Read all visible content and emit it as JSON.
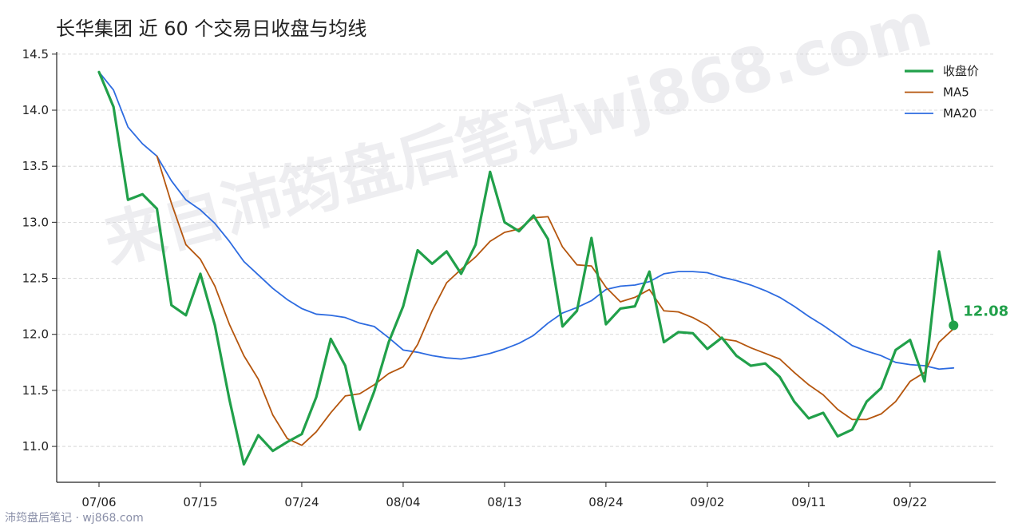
{
  "chart_data": {
    "type": "line",
    "title": "长华集团 近 60 个交易日收盘与均线",
    "xlabel": "",
    "ylabel": "",
    "x_tick_labels": [
      "07/06",
      "07/15",
      "07/24",
      "08/04",
      "08/13",
      "08/24",
      "09/02",
      "09/11",
      "09/22"
    ],
    "x_tick_indices": [
      0,
      7,
      14,
      21,
      28,
      35,
      42,
      49,
      56
    ],
    "y_ticks": [
      "11.0",
      "11.5",
      "12.0",
      "12.5",
      "13.0",
      "13.5",
      "14.0",
      "14.5"
    ],
    "ylim": [
      10.68,
      14.52
    ],
    "grid": "horizontal dashed",
    "legend_position": "top-right",
    "series": [
      {
        "name": "收盘价",
        "color": "#21a04a",
        "values": [
          14.34,
          14.03,
          13.2,
          13.25,
          13.12,
          12.26,
          12.17,
          12.54,
          12.08,
          11.42,
          10.84,
          11.1,
          10.96,
          11.04,
          11.11,
          11.44,
          11.96,
          11.72,
          11.15,
          11.49,
          11.93,
          12.25,
          12.75,
          12.63,
          12.74,
          12.54,
          12.8,
          13.45,
          13.0,
          12.92,
          13.06,
          12.85,
          12.07,
          12.21,
          12.86,
          12.09,
          12.23,
          12.25,
          12.56,
          11.93,
          12.02,
          12.01,
          11.87,
          11.97,
          11.81,
          11.72,
          11.74,
          11.62,
          11.4,
          11.25,
          11.3,
          11.09,
          11.15,
          11.4,
          11.52,
          11.86,
          11.95,
          11.58,
          12.74,
          12.08
        ]
      },
      {
        "name": "MA5",
        "color": "#b5560e",
        "values": [
          null,
          null,
          null,
          null,
          13.59,
          13.17,
          12.8,
          12.67,
          12.43,
          12.09,
          11.81,
          11.6,
          11.28,
          11.07,
          11.01,
          11.13,
          11.3,
          11.45,
          11.47,
          11.55,
          11.65,
          11.71,
          11.91,
          12.21,
          12.46,
          12.58,
          12.69,
          12.83,
          12.91,
          12.94,
          13.04,
          13.05,
          12.78,
          12.62,
          12.61,
          12.42,
          12.29,
          12.33,
          12.4,
          12.21,
          12.2,
          12.15,
          12.08,
          11.96,
          11.94,
          11.88,
          11.83,
          11.78,
          11.66,
          11.55,
          11.46,
          11.33,
          11.24,
          11.24,
          11.29,
          11.4,
          11.58,
          11.66,
          11.93,
          12.05
        ]
      },
      {
        "name": "MA20",
        "color": "#2d6be0",
        "values": [
          14.34,
          14.18,
          13.85,
          13.7,
          13.59,
          13.37,
          13.2,
          13.11,
          12.99,
          12.83,
          12.65,
          12.53,
          12.41,
          12.31,
          12.23,
          12.18,
          12.17,
          12.15,
          12.1,
          12.07,
          11.97,
          11.86,
          11.84,
          11.81,
          11.79,
          11.78,
          11.8,
          11.83,
          11.87,
          11.92,
          11.99,
          12.1,
          12.19,
          12.24,
          12.3,
          12.4,
          12.43,
          12.44,
          12.47,
          12.54,
          12.56,
          12.56,
          12.55,
          12.51,
          12.48,
          12.44,
          12.39,
          12.33,
          12.25,
          12.16,
          12.08,
          11.99,
          11.9,
          11.85,
          11.81,
          11.75,
          11.73,
          11.72,
          11.69,
          11.7
        ]
      }
    ],
    "last_value_label": "12.08"
  },
  "watermark": "来自沛筠盘后笔记wj868.com",
  "credit": "沛筠盘后笔记 · wj868.com"
}
